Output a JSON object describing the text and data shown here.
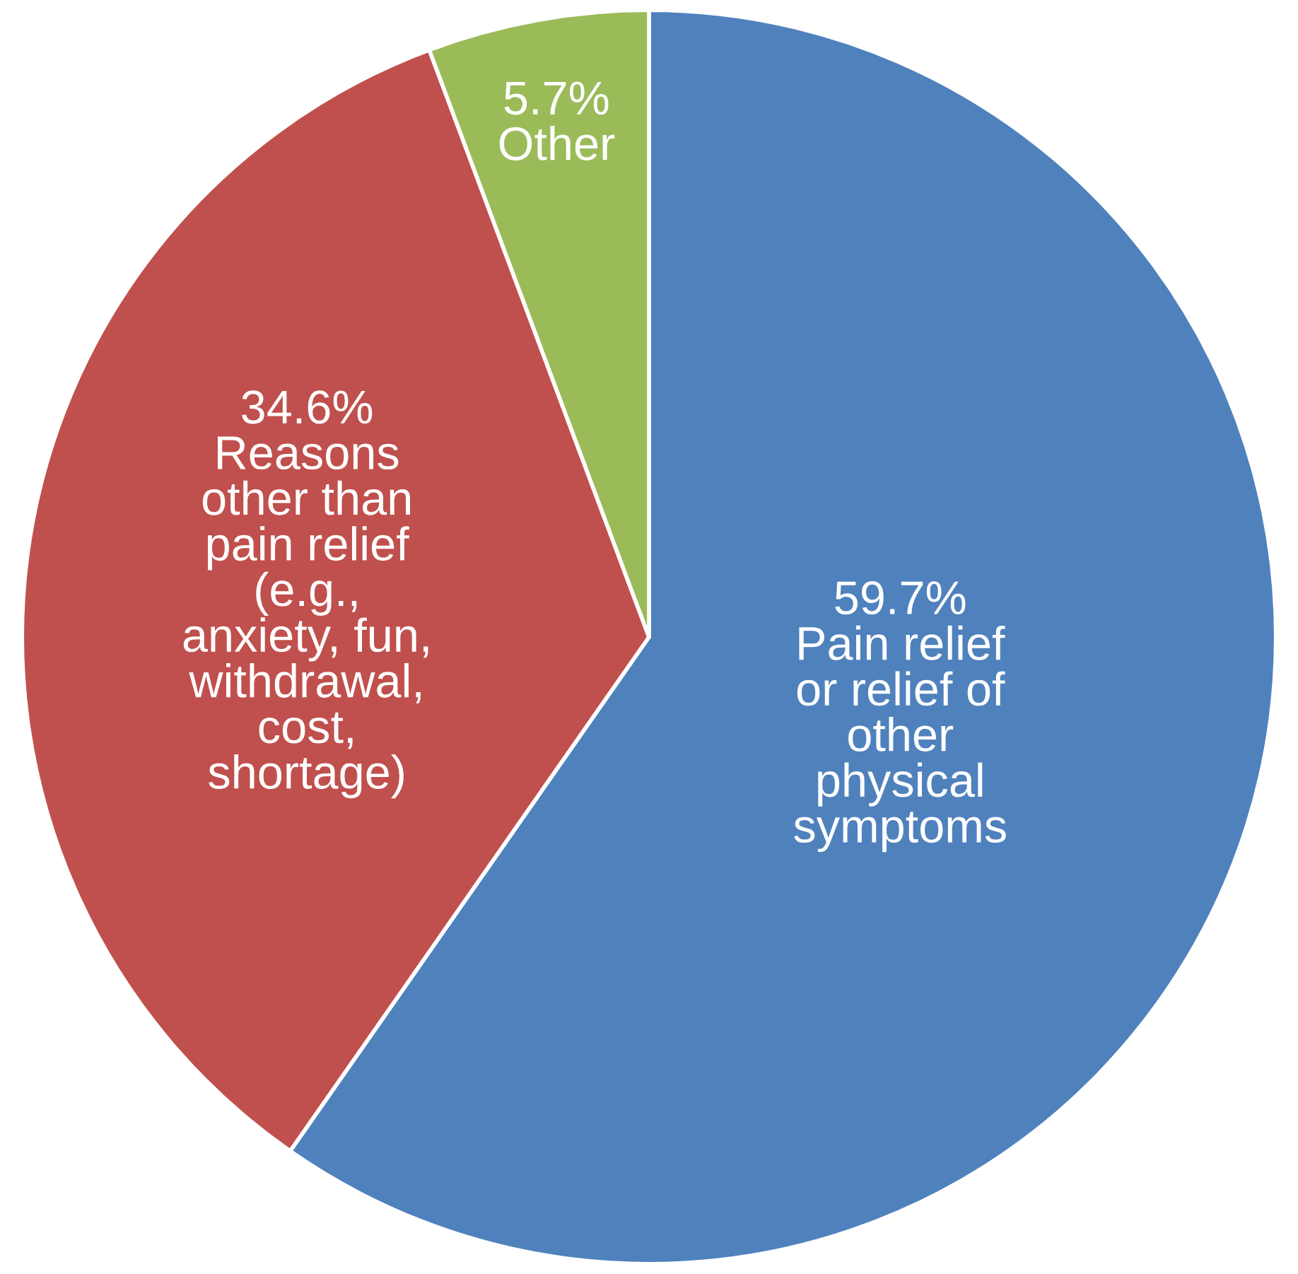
{
  "chart_data": {
    "type": "pie",
    "categories": [
      "Pain relief\nor relief of\nother\nphysical\nsymptoms",
      "Reasons\nother than\npain relief\n(e.g.,\nanxiety, fun,\nwithdrawal,\ncost,\nshortage)",
      "Other"
    ],
    "values": [
      59.7,
      34.6,
      5.7
    ],
    "value_labels": [
      "59.7%",
      "34.6%",
      "5.7%"
    ],
    "colors": [
      "#4f81bd",
      "#c0504d",
      "#9bbb59"
    ]
  }
}
